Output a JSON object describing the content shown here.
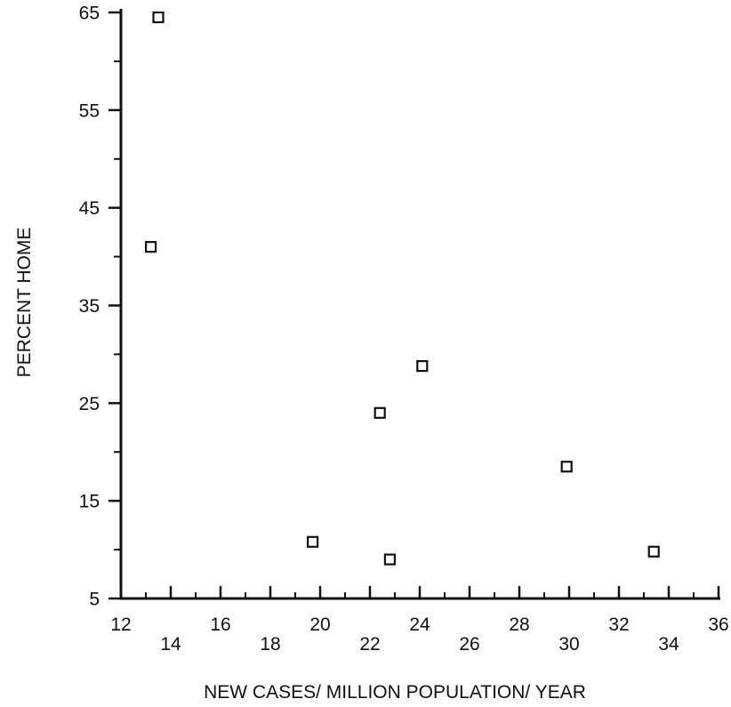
{
  "chart_data": {
    "type": "scatter",
    "title": "",
    "xlabel": "NEW CASES/ MILLION POPULATION/ YEAR",
    "ylabel": "PERCENT HOME",
    "xlim": [
      12,
      36
    ],
    "ylim": [
      5,
      65
    ],
    "x_ticks": [
      "12",
      "14",
      "16",
      "18",
      "20",
      "22",
      "24",
      "26",
      "28",
      "30",
      "32",
      "34",
      "36"
    ],
    "y_ticks": [
      "5",
      "15",
      "25",
      "35",
      "45",
      "55",
      "65"
    ],
    "grid": false,
    "marker": "open-square",
    "colors": {
      "ink": "#111111",
      "background": "#ffffff"
    },
    "points": [
      {
        "x": 13.5,
        "y": 64.5
      },
      {
        "x": 13.2,
        "y": 41
      },
      {
        "x": 19.7,
        "y": 10.8
      },
      {
        "x": 22.4,
        "y": 24
      },
      {
        "x": 22.8,
        "y": 9
      },
      {
        "x": 24.1,
        "y": 28.8
      },
      {
        "x": 29.9,
        "y": 18.5
      },
      {
        "x": 33.4,
        "y": 9.8
      }
    ]
  }
}
